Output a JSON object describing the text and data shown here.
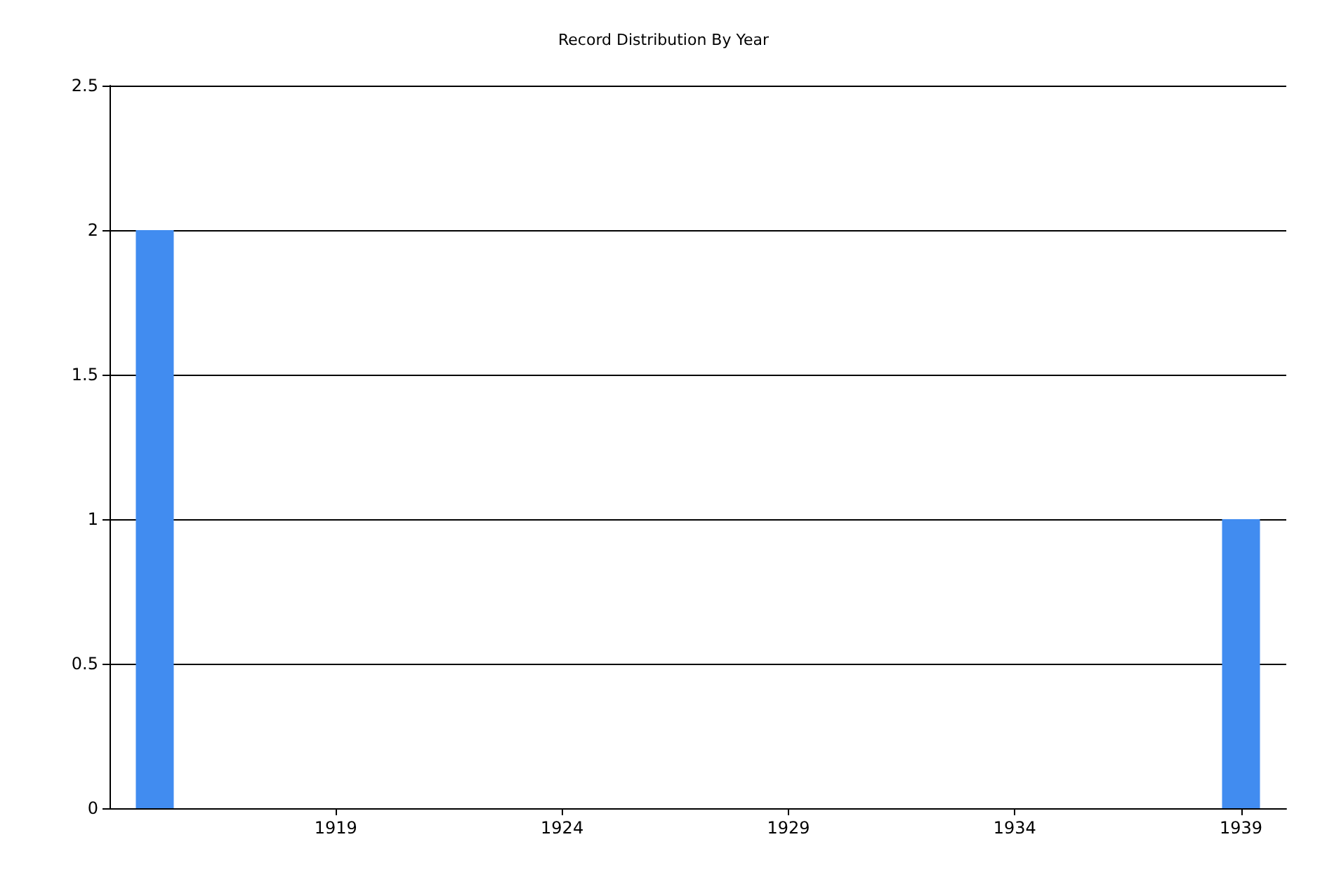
{
  "chart_data": {
    "type": "bar",
    "title": "Record Distribution By Year",
    "x": [
      1915,
      1939
    ],
    "values": [
      2,
      1
    ],
    "color": "#418cf0",
    "xlim": [
      1914,
      1940
    ],
    "xticks": [
      1919,
      1924,
      1929,
      1934,
      1939
    ],
    "ylim": [
      0,
      2.5
    ],
    "yticks": [
      0,
      0.5,
      1,
      1.5,
      2,
      2.5
    ],
    "grid": "y"
  }
}
